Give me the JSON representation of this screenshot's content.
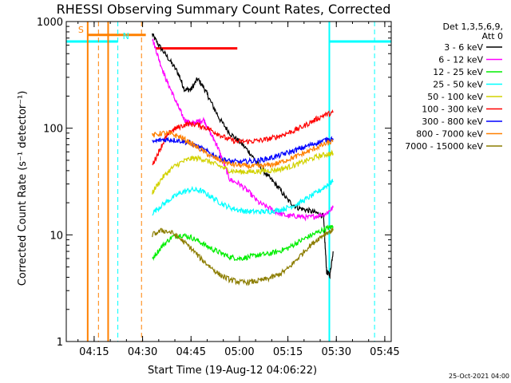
{
  "chart_data": {
    "type": "line",
    "title": "RHESSI Observing Summary Count Rates, Corrected",
    "xlabel": "Start Time (19-Aug-12 04:06:22)",
    "ylabel": "Corrected Count Rate (s⁻¹ detector⁻¹)",
    "y_scale": "log",
    "ylim": [
      1,
      1000
    ],
    "xlim": [
      "04:06:22",
      "05:47:00"
    ],
    "x_ticks": [
      "04:15",
      "04:30",
      "04:45",
      "05:00",
      "05:15",
      "05:30",
      "05:45"
    ],
    "y_ticks": [
      "1",
      "10",
      "100",
      "1000"
    ],
    "legend": {
      "placement": "right",
      "header": [
        "Det 1,3,5,6,9,",
        "Att 0"
      ],
      "entries": [
        {
          "label": "3 - 6 keV",
          "color": "#000000"
        },
        {
          "label": "6 - 12 keV",
          "color": "#ff00ff"
        },
        {
          "label": "12 - 25 keV",
          "color": "#00ee00"
        },
        {
          "label": "25 - 50 keV",
          "color": "#00ffff"
        },
        {
          "label": "50 - 100 keV",
          "color": "#d2d200"
        },
        {
          "label": "100 - 300 keV",
          "color": "#ff0000"
        },
        {
          "label": "300 - 800 keV",
          "color": "#0000ff"
        },
        {
          "label": "800 - 7000 keV",
          "color": "#ff8000"
        },
        {
          "label": "7000 - 15000 keV",
          "color": "#8c7d00"
        }
      ]
    },
    "annotations": [
      {
        "text": "S",
        "color": "#ff8000"
      },
      {
        "text": "N",
        "color": "#00ffff"
      }
    ],
    "markers": {
      "saa": {
        "color": "#ff8000",
        "solid_at": [
          "04:13:00",
          "04:19:20"
        ],
        "dashed_at": [
          "04:16:20",
          "04:29:40"
        ],
        "bar_from": "04:13:00",
        "bar_to": "04:31:00",
        "level": 750
      },
      "night": {
        "color": "#00ffff",
        "solid_at": [
          "05:27:50"
        ],
        "dashed_at": [
          "04:22:20",
          "05:41:50"
        ],
        "bar1_from": "04:06:22",
        "bar1_to": "04:22:20",
        "bar2_from": "05:27:50",
        "bar2_to": "05:47:00",
        "level": 650
      },
      "flare": {
        "color": "#ff0000",
        "from": "04:34:00",
        "to": "04:59:20",
        "level": 560
      }
    },
    "series": [
      {
        "name": "3 - 6 keV",
        "color": "#000000",
        "x": [
          "04:33",
          "04:35",
          "04:38",
          "04:41",
          "04:43",
          "04:45",
          "04:47",
          "04:49",
          "04:51",
          "04:54",
          "04:57",
          "05:00",
          "05:03",
          "05:06",
          "05:09",
          "05:12",
          "05:15",
          "05:18",
          "05:21",
          "05:24",
          "05:26",
          "05:27",
          "05:28",
          "05:29"
        ],
        "y": [
          760,
          600,
          450,
          330,
          230,
          230,
          290,
          240,
          180,
          120,
          90,
          75,
          60,
          45,
          35,
          28,
          21,
          18,
          17,
          16,
          15,
          4.5,
          4.2,
          7
        ]
      },
      {
        "name": "6 - 12 keV",
        "color": "#ff00ff",
        "x": [
          "04:33",
          "04:35",
          "04:37",
          "04:39",
          "04:41",
          "04:43",
          "04:45",
          "04:47",
          "04:49",
          "04:51",
          "04:53",
          "04:55",
          "04:57",
          "05:00",
          "05:03",
          "05:06",
          "05:09",
          "05:12",
          "05:15",
          "05:18",
          "05:21",
          "05:24",
          "05:27",
          "05:29"
        ],
        "y": [
          700,
          450,
          300,
          220,
          160,
          120,
          110,
          115,
          120,
          90,
          70,
          48,
          33,
          30,
          25,
          20,
          18,
          16,
          15,
          15,
          14.5,
          15,
          16,
          18
        ]
      },
      {
        "name": "12 - 25 keV",
        "color": "#00ee00",
        "x": [
          "04:33",
          "04:36",
          "04:39",
          "04:42",
          "04:45",
          "04:48",
          "04:51",
          "04:54",
          "04:57",
          "05:00",
          "05:03",
          "05:06",
          "05:09",
          "05:12",
          "05:15",
          "05:18",
          "05:21",
          "05:24",
          "05:27",
          "05:29"
        ],
        "y": [
          6,
          7.8,
          9.5,
          10,
          9.5,
          8.5,
          7.5,
          6.8,
          6.2,
          6,
          6.2,
          6.5,
          6.6,
          7,
          7.5,
          8.5,
          9.5,
          10.5,
          11.5,
          12
        ]
      },
      {
        "name": "25 - 50 keV",
        "color": "#00ffff",
        "x": [
          "04:33",
          "04:36",
          "04:39",
          "04:42",
          "04:45",
          "04:48",
          "04:51",
          "04:54",
          "04:57",
          "05:00",
          "05:03",
          "05:06",
          "05:09",
          "05:12",
          "05:15",
          "05:18",
          "05:21",
          "05:24",
          "05:27",
          "05:29"
        ],
        "y": [
          16,
          19,
          22,
          25,
          26.5,
          26,
          23,
          20,
          18,
          17,
          16.5,
          16.5,
          16.5,
          17,
          18,
          19.5,
          22,
          25,
          29,
          32
        ]
      },
      {
        "name": "50 - 100 keV",
        "color": "#d2d200",
        "x": [
          "04:33",
          "04:36",
          "04:39",
          "04:42",
          "04:45",
          "04:48",
          "04:51",
          "04:54",
          "04:57",
          "05:00",
          "05:03",
          "05:06",
          "05:09",
          "05:12",
          "05:15",
          "05:18",
          "05:21",
          "05:24",
          "05:27",
          "05:29"
        ],
        "y": [
          25,
          34,
          42,
          48,
          52,
          52,
          48,
          44,
          40,
          39,
          39,
          39.5,
          40,
          41,
          43,
          46,
          50,
          54,
          57,
          58
        ]
      },
      {
        "name": "100 - 300 keV",
        "color": "#ff0000",
        "x": [
          "04:33",
          "04:35",
          "04:37",
          "04:39",
          "04:41",
          "04:44",
          "04:47",
          "04:50",
          "04:53",
          "04:56",
          "04:59",
          "05:02",
          "05:05",
          "05:08",
          "05:11",
          "05:14",
          "05:17",
          "05:20",
          "05:23",
          "05:26",
          "05:29"
        ],
        "y": [
          45,
          60,
          80,
          95,
          102,
          110,
          108,
          100,
          90,
          80,
          75,
          75,
          76,
          78,
          82,
          88,
          95,
          105,
          118,
          132,
          140
        ]
      },
      {
        "name": "300 - 800 keV",
        "color": "#0000ff",
        "x": [
          "04:33",
          "04:36",
          "04:39",
          "04:42",
          "04:45",
          "04:48",
          "04:51",
          "04:54",
          "04:57",
          "05:00",
          "05:03",
          "05:06",
          "05:09",
          "05:12",
          "05:15",
          "05:18",
          "05:21",
          "05:24",
          "05:27",
          "05:29"
        ],
        "y": [
          74,
          78,
          78,
          76,
          72,
          65,
          58,
          52,
          49,
          48,
          49,
          50,
          52,
          55,
          59,
          63,
          68,
          73,
          78,
          80
        ]
      },
      {
        "name": "800 - 7000 keV",
        "color": "#ff8000",
        "x": [
          "04:33",
          "04:36",
          "04:39",
          "04:42",
          "04:45",
          "04:48",
          "04:51",
          "04:54",
          "04:57",
          "05:00",
          "05:03",
          "05:06",
          "05:09",
          "05:12",
          "05:15",
          "05:18",
          "05:21",
          "05:24",
          "05:27",
          "05:29"
        ],
        "y": [
          85,
          90,
          88,
          82,
          72,
          63,
          55,
          50,
          46,
          45,
          44,
          44,
          45,
          47,
          51,
          55,
          60,
          66,
          72,
          75
        ]
      },
      {
        "name": "7000 - 15000 keV",
        "color": "#8c7d00",
        "x": [
          "04:33",
          "04:36",
          "04:39",
          "04:42",
          "04:45",
          "04:48",
          "04:51",
          "04:54",
          "04:57",
          "05:00",
          "05:03",
          "05:06",
          "05:09",
          "05:12",
          "05:15",
          "05:18",
          "05:21",
          "05:24",
          "05:27",
          "05:29"
        ],
        "y": [
          10,
          11,
          10.5,
          9,
          7.5,
          6,
          5,
          4.2,
          3.8,
          3.6,
          3.6,
          3.7,
          3.9,
          4.2,
          4.8,
          6,
          7.5,
          9,
          10.5,
          11
        ]
      }
    ]
  },
  "footer": {
    "timestamp": "25-Oct-2021 04:00"
  }
}
